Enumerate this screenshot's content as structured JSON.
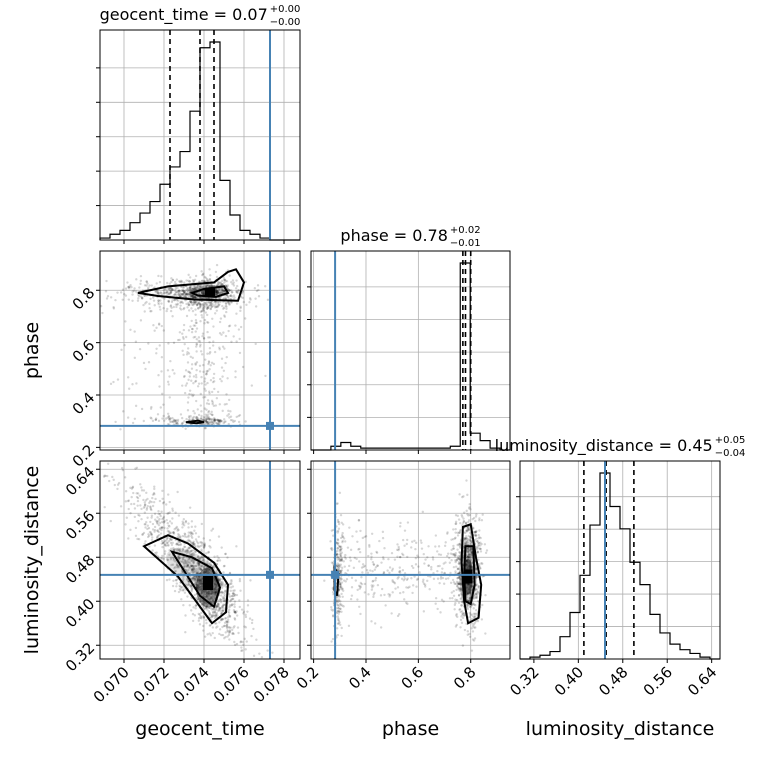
{
  "chart_data": {
    "type": "corner",
    "parameters": [
      "geocent_time",
      "phase",
      "luminosity_distance"
    ],
    "truths": {
      "geocent_time": 0.0773,
      "phase": 0.282,
      "luminosity_distance": 0.448
    },
    "titles": [
      {
        "param": "geocent_time",
        "main": "geocent_time = 0.07",
        "sup": "+0.00",
        "sub": "−0.00"
      },
      {
        "param": "phase",
        "main": "phase = 0.78",
        "sup": "+0.02",
        "sub": "−0.01"
      },
      {
        "param": "luminosity_distance",
        "main": "luminosity_distance = 0.45",
        "sup": "+0.05",
        "sub": "−0.04"
      }
    ],
    "axes": {
      "geocent_time": {
        "range": [
          0.0688,
          0.0788
        ],
        "ticks": [
          "0.070",
          "0.072",
          "0.074",
          "0.076",
          "0.078"
        ]
      },
      "phase": {
        "range": [
          0.19,
          0.95
        ],
        "ticks": [
          "0.2",
          "0.4",
          "0.6",
          "0.8"
        ]
      },
      "luminosity_distance": {
        "range": [
          0.295,
          0.655
        ],
        "ticks": [
          "0.32",
          "0.40",
          "0.48",
          "0.56",
          "0.64"
        ]
      }
    },
    "marginals": {
      "geocent_time": {
        "bin_edges": [
          0.0688,
          0.0693,
          0.0698,
          0.0703,
          0.0708,
          0.0713,
          0.0718,
          0.0723,
          0.0728,
          0.0733,
          0.0738,
          0.0743,
          0.0748,
          0.0753,
          0.0758,
          0.0763,
          0.0768,
          0.0773,
          0.0778,
          0.0783,
          0.0788
        ],
        "counts": [
          1,
          3,
          5,
          9,
          14,
          20,
          29,
          38,
          46,
          67,
          100,
          103,
          31,
          13,
          5,
          3,
          1,
          0,
          0,
          0
        ],
        "quantiles": [
          0.0723,
          0.0738,
          0.0745
        ]
      },
      "phase": {
        "bin_edges": [
          0.19,
          0.228,
          0.266,
          0.304,
          0.342,
          0.38,
          0.418,
          0.456,
          0.494,
          0.532,
          0.57,
          0.608,
          0.646,
          0.684,
          0.722,
          0.76,
          0.798,
          0.836,
          0.874,
          0.912,
          0.95
        ],
        "counts": [
          0,
          0,
          2,
          4,
          2,
          1,
          1,
          1,
          1,
          1,
          1,
          1,
          1,
          1,
          2,
          100,
          9,
          5,
          1,
          0
        ],
        "quantiles": [
          0.77,
          0.78,
          0.8
        ]
      },
      "luminosity_distance": {
        "bin_edges": [
          0.295,
          0.313,
          0.331,
          0.349,
          0.367,
          0.385,
          0.403,
          0.421,
          0.439,
          0.457,
          0.475,
          0.493,
          0.511,
          0.529,
          0.547,
          0.565,
          0.583,
          0.601,
          0.619,
          0.637,
          0.655
        ],
        "counts": [
          0,
          1,
          2,
          4,
          12,
          25,
          45,
          72,
          100,
          82,
          70,
          52,
          40,
          24,
          14,
          8,
          5,
          3,
          1,
          0
        ],
        "quantiles": [
          0.41,
          0.45,
          0.5
        ]
      }
    },
    "contour_levels": [
      "1σ",
      "2σ"
    ],
    "grid": true
  }
}
